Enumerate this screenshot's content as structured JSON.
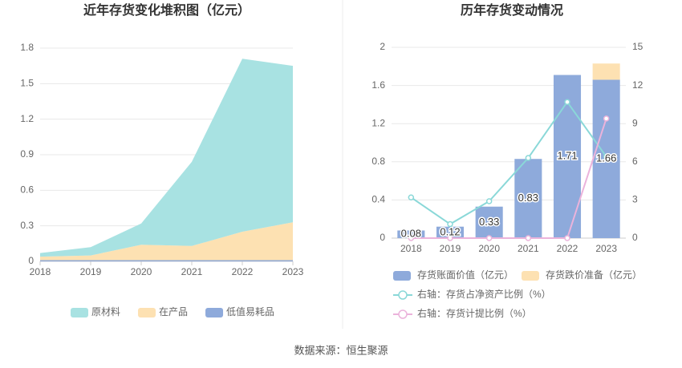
{
  "chart_data": [
    {
      "type": "area",
      "title": "近年存货变化堆积图（亿元）",
      "categories": [
        "2018",
        "2019",
        "2020",
        "2021",
        "2022",
        "2023"
      ],
      "series": [
        {
          "name": "原材料",
          "color": "#a8e2e2",
          "values": [
            0.03,
            0.07,
            0.18,
            0.71,
            1.46,
            1.32
          ]
        },
        {
          "name": "在产品",
          "color": "#fde1b2",
          "values": [
            0.03,
            0.04,
            0.13,
            0.12,
            0.24,
            0.32
          ]
        },
        {
          "name": "低值易耗品",
          "color": "#8eaadb",
          "values": [
            0.01,
            0.01,
            0.01,
            0.01,
            0.01,
            0.01
          ]
        }
      ],
      "ylim": [
        0,
        1.8
      ],
      "yticks": [
        0,
        0.3,
        0.6,
        0.9,
        1.2,
        1.5,
        1.8
      ],
      "grid": true
    },
    {
      "type": "bar",
      "title": "历年存货变动情况",
      "categories": [
        "2018",
        "2019",
        "2020",
        "2021",
        "2022",
        "2023"
      ],
      "series": [
        {
          "name": "存货账面价值（亿元）",
          "color": "#8eaadb",
          "values": [
            0.08,
            0.12,
            0.33,
            0.83,
            1.71,
            1.66
          ]
        },
        {
          "name": "存货跌价准备（亿元）",
          "color": "#fde1b2",
          "values": [
            0,
            0,
            0,
            0,
            0,
            0.17
          ]
        },
        {
          "name": "右轴：存货占净资产比例（%）",
          "color": "#8ad8d8",
          "axis": "y2",
          "values": [
            3.2,
            1.1,
            2.9,
            6.3,
            10.7,
            6.4
          ]
        },
        {
          "name": "右轴：存货计提比例（%）",
          "color": "#ebb3db",
          "axis": "y2",
          "values": [
            0,
            0,
            0,
            0,
            0,
            9.4
          ]
        }
      ],
      "ylim": [
        0,
        2
      ],
      "yticks": [
        0,
        0.4,
        0.8,
        1.2,
        1.6,
        2
      ],
      "y2lim": [
        0,
        15
      ],
      "y2ticks": [
        0,
        3,
        6,
        9,
        12,
        15
      ],
      "grid": true
    }
  ],
  "source": "数据来源：恒生聚源"
}
